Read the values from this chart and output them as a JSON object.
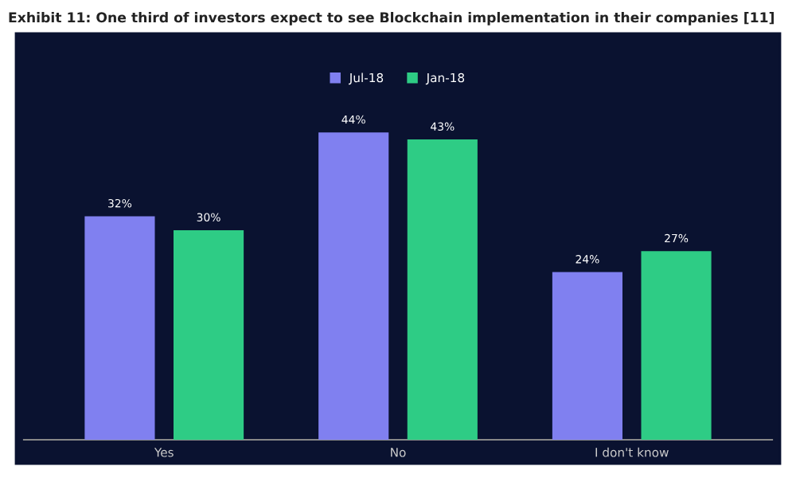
{
  "chart_data": {
    "type": "bar",
    "title": "Exhibit 11: One third of investors expect to see Blockchain implementation in their companies [11]",
    "categories": [
      "Yes",
      "No",
      "I don't know"
    ],
    "series": [
      {
        "name": "Jul-18",
        "color": "#8080f0",
        "values": [
          32,
          44,
          24
        ],
        "value_labels": [
          "32%",
          "44%",
          "24%"
        ]
      },
      {
        "name": "Jan-18",
        "color": "#2ecc85",
        "values": [
          30,
          43,
          27
        ],
        "value_labels": [
          "30%",
          "43%",
          "27%"
        ]
      }
    ],
    "legend": "top",
    "grid": false
  }
}
